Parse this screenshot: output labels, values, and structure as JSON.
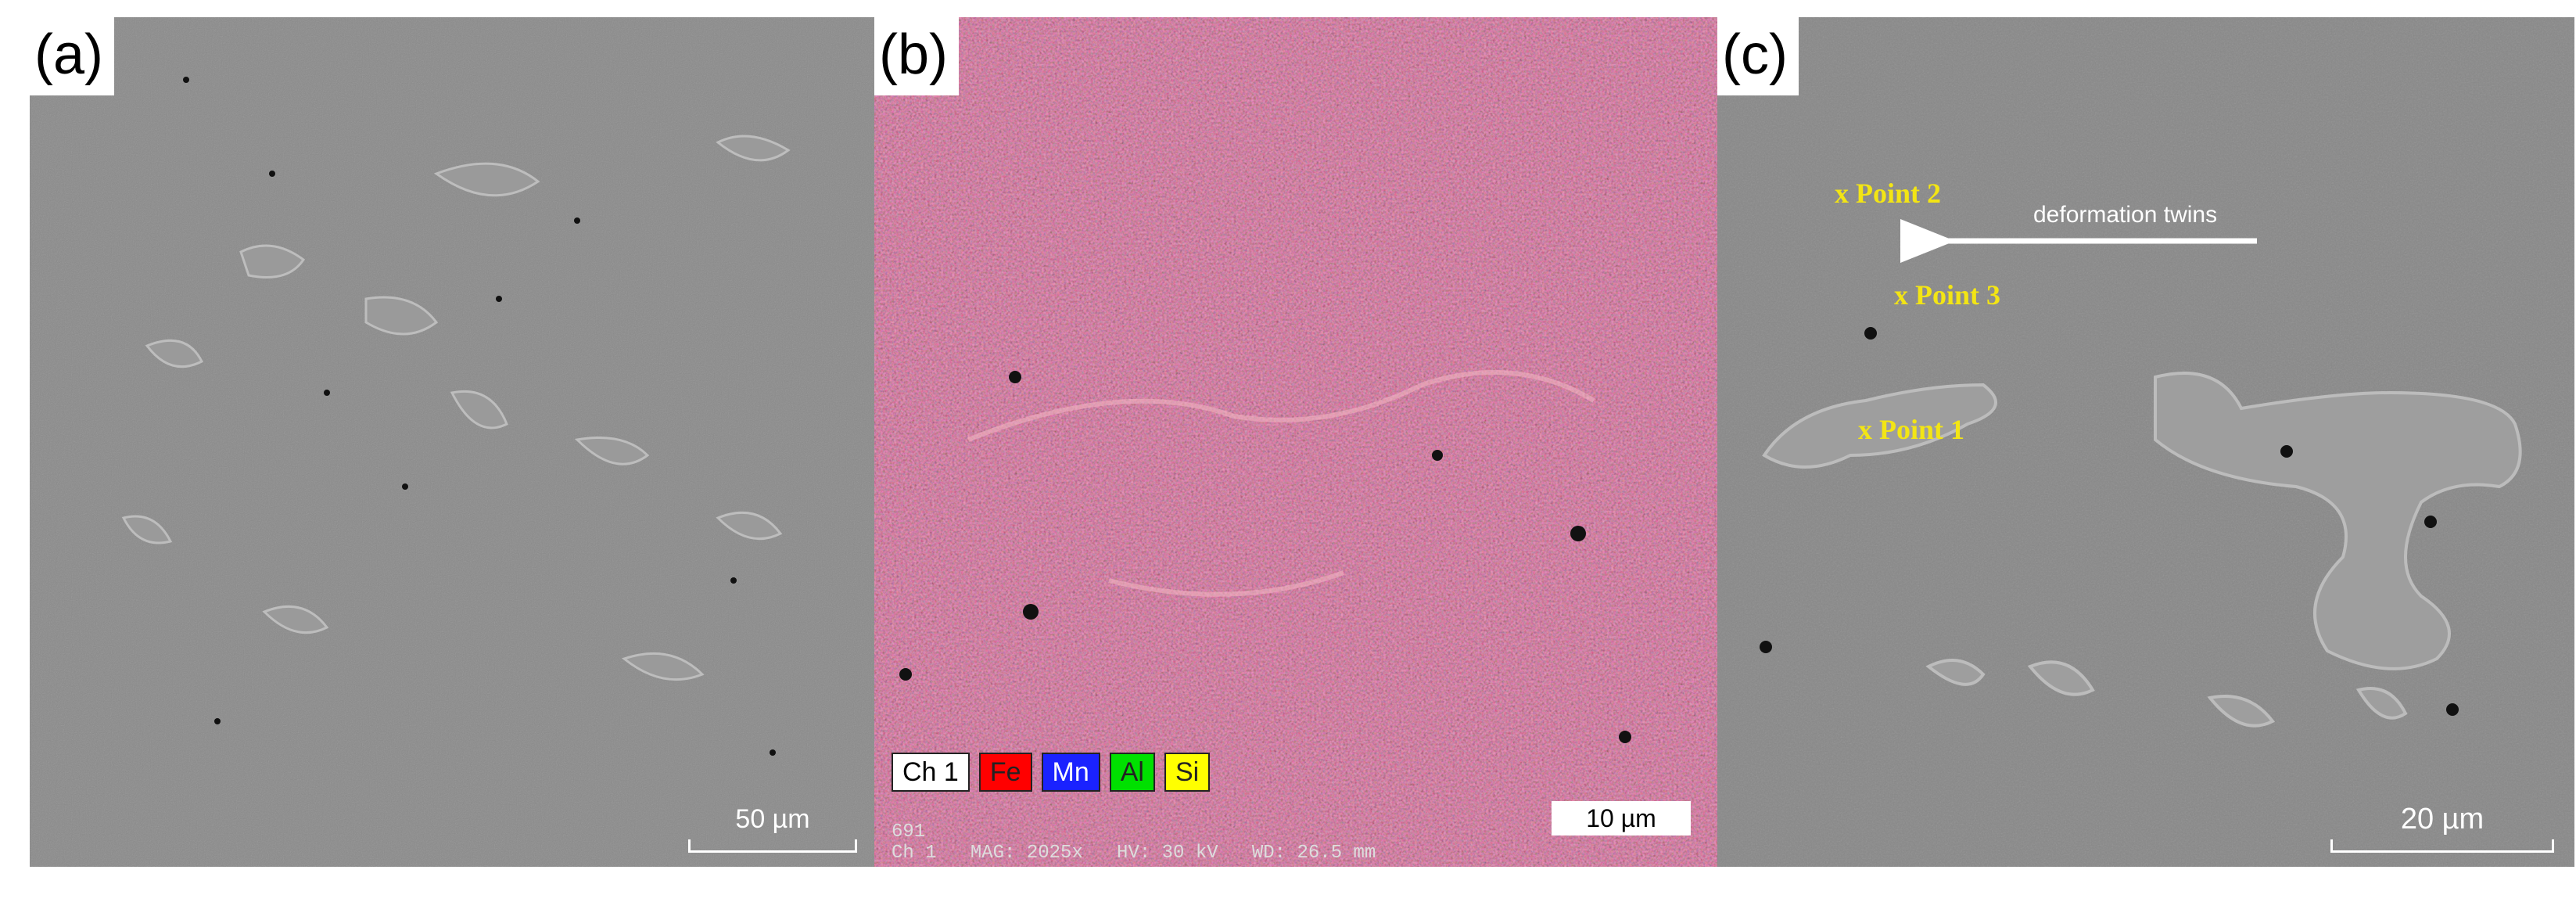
{
  "panels": {
    "a": {
      "label": "(a)",
      "scale_bar": "50 µm"
    },
    "b": {
      "label": "(b)",
      "scale_bar": "10 µm",
      "legend": [
        {
          "name": "Ch 1",
          "color": "#ffffff",
          "text_color": "#000000"
        },
        {
          "name": "Fe",
          "color": "#ff0000",
          "text_color": "#222222"
        },
        {
          "name": "Mn",
          "color": "#1a22ff",
          "text_color": "#ffffff"
        },
        {
          "name": "Al",
          "color": "#00e000",
          "text_color": "#222222"
        },
        {
          "name": "Si",
          "color": "#ffff00",
          "text_color": "#222222"
        }
      ],
      "footer_id": "691",
      "footer_meta": "Ch 1   MAG: 2025x   HV: 30 kV   WD: 26.5 mm"
    },
    "c": {
      "label": "(c)",
      "scale_bar": "20 µm",
      "points": [
        "x Point 2",
        "x Point 3",
        "x Point 1"
      ],
      "arrow_label": "deformation twins"
    }
  },
  "colors": {
    "point_label": "#f3e514",
    "sem_background": "#8c8c8c",
    "eds_background": "#d0536a"
  }
}
